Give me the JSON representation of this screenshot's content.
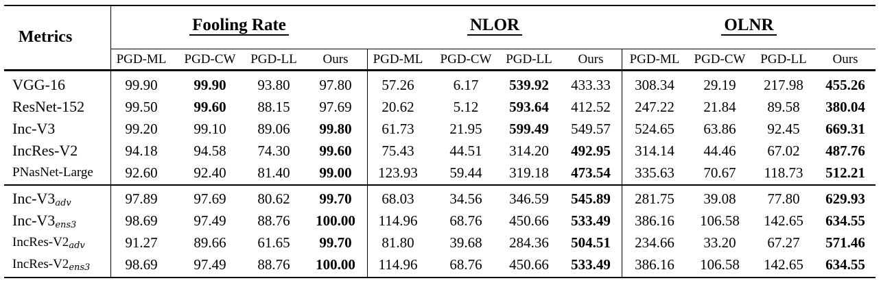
{
  "header": {
    "metrics_label": "Metrics",
    "groups": [
      "Fooling Rate",
      "NLOR",
      "OLNR"
    ],
    "methods": [
      "PGD-ML",
      "PGD-CW",
      "PGD-LL",
      "Ours"
    ]
  },
  "sections": [
    {
      "rows": [
        {
          "model": "VGG-16",
          "sub": "",
          "values": [
            "99.90",
            "99.90",
            "93.80",
            "97.80",
            "57.26",
            "6.17",
            "539.92",
            "433.33",
            "308.34",
            "29.19",
            "217.98",
            "455.26"
          ],
          "bold": [
            1,
            6,
            11
          ]
        },
        {
          "model": "ResNet-152",
          "sub": "",
          "values": [
            "99.50",
            "99.60",
            "88.15",
            "97.69",
            "20.62",
            "5.12",
            "593.64",
            "412.52",
            "247.22",
            "21.84",
            "89.58",
            "380.04"
          ],
          "bold": [
            1,
            6,
            11
          ]
        },
        {
          "model": "Inc-V3",
          "sub": "",
          "values": [
            "99.20",
            "99.10",
            "89.06",
            "99.80",
            "61.73",
            "21.95",
            "599.49",
            "549.57",
            "524.65",
            "63.86",
            "92.45",
            "669.31"
          ],
          "bold": [
            3,
            6,
            11
          ]
        },
        {
          "model": "IncRes-V2",
          "sub": "",
          "values": [
            "94.18",
            "94.58",
            "74.30",
            "99.60",
            "75.43",
            "44.51",
            "314.20",
            "492.95",
            "314.14",
            "44.46",
            "67.02",
            "487.76"
          ],
          "bold": [
            3,
            7,
            11
          ]
        },
        {
          "model": "PNasNet-Large",
          "sub": "",
          "values": [
            "92.60",
            "92.40",
            "81.40",
            "99.00",
            "123.93",
            "59.44",
            "319.18",
            "473.54",
            "335.63",
            "70.67",
            "118.73",
            "512.21"
          ],
          "bold": [
            3,
            7,
            11
          ]
        }
      ]
    },
    {
      "rows": [
        {
          "model": "Inc-V3",
          "sub": "adv",
          "values": [
            "97.89",
            "97.69",
            "80.62",
            "99.70",
            "68.03",
            "34.56",
            "346.59",
            "545.89",
            "281.75",
            "39.08",
            "77.80",
            "629.93"
          ],
          "bold": [
            3,
            7,
            11
          ]
        },
        {
          "model": "Inc-V3",
          "sub": "ens3",
          "values": [
            "98.69",
            "97.49",
            "88.76",
            "100.00",
            "114.96",
            "68.76",
            "450.66",
            "533.49",
            "386.16",
            "106.58",
            "142.65",
            "634.55"
          ],
          "bold": [
            3,
            7,
            11
          ]
        },
        {
          "model": "IncRes-V2",
          "sub": "adv",
          "values": [
            "91.27",
            "89.66",
            "61.65",
            "99.70",
            "81.80",
            "39.68",
            "284.36",
            "504.51",
            "234.66",
            "33.20",
            "67.27",
            "571.46"
          ],
          "bold": [
            3,
            7,
            11
          ]
        },
        {
          "model": "IncRes-V2",
          "sub": "ens3",
          "values": [
            "98.69",
            "97.49",
            "88.76",
            "100.00",
            "114.96",
            "68.76",
            "450.66",
            "533.49",
            "386.16",
            "106.58",
            "142.65",
            "634.55"
          ],
          "bold": [
            3,
            7,
            11
          ]
        }
      ]
    }
  ]
}
